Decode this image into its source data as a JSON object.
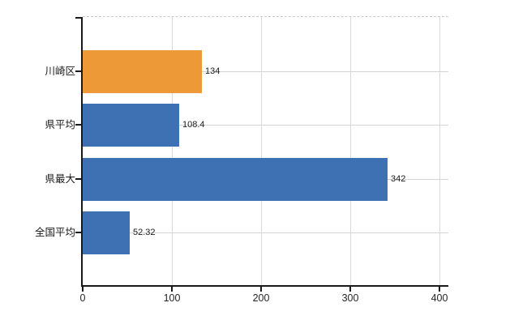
{
  "chart_data": {
    "type": "bar",
    "orientation": "horizontal",
    "title": "",
    "xlabel": "",
    "ylabel": "",
    "categories": [
      "川崎区",
      "県平均",
      "県最大",
      "全国平均"
    ],
    "values": [
      134,
      108.4,
      342,
      52.32
    ],
    "value_labels": [
      "134",
      "108.4",
      "342",
      "52.32"
    ],
    "bar_colors": [
      "#EE9938",
      "#3E70B4",
      "#3E70B4",
      "#3E70B4"
    ],
    "xlim": [
      0,
      410
    ],
    "xticks": [
      0,
      100,
      200,
      300,
      400
    ],
    "xtick_labels": [
      "0",
      "100",
      "200",
      "300",
      "400"
    ],
    "grid": true,
    "legend_position": "none"
  },
  "colors": {
    "background": "#ffffff",
    "axis": "#1a1a1a",
    "vertical_gridline": "#d9d9d9",
    "horizontal_gridline": "#d4d4d4",
    "top_border": "#c9c9c9",
    "label_text": "#1a1a1a",
    "tick_text": "#262626",
    "highlight_bar": "#EE9938",
    "default_bar": "#3E70B4"
  }
}
